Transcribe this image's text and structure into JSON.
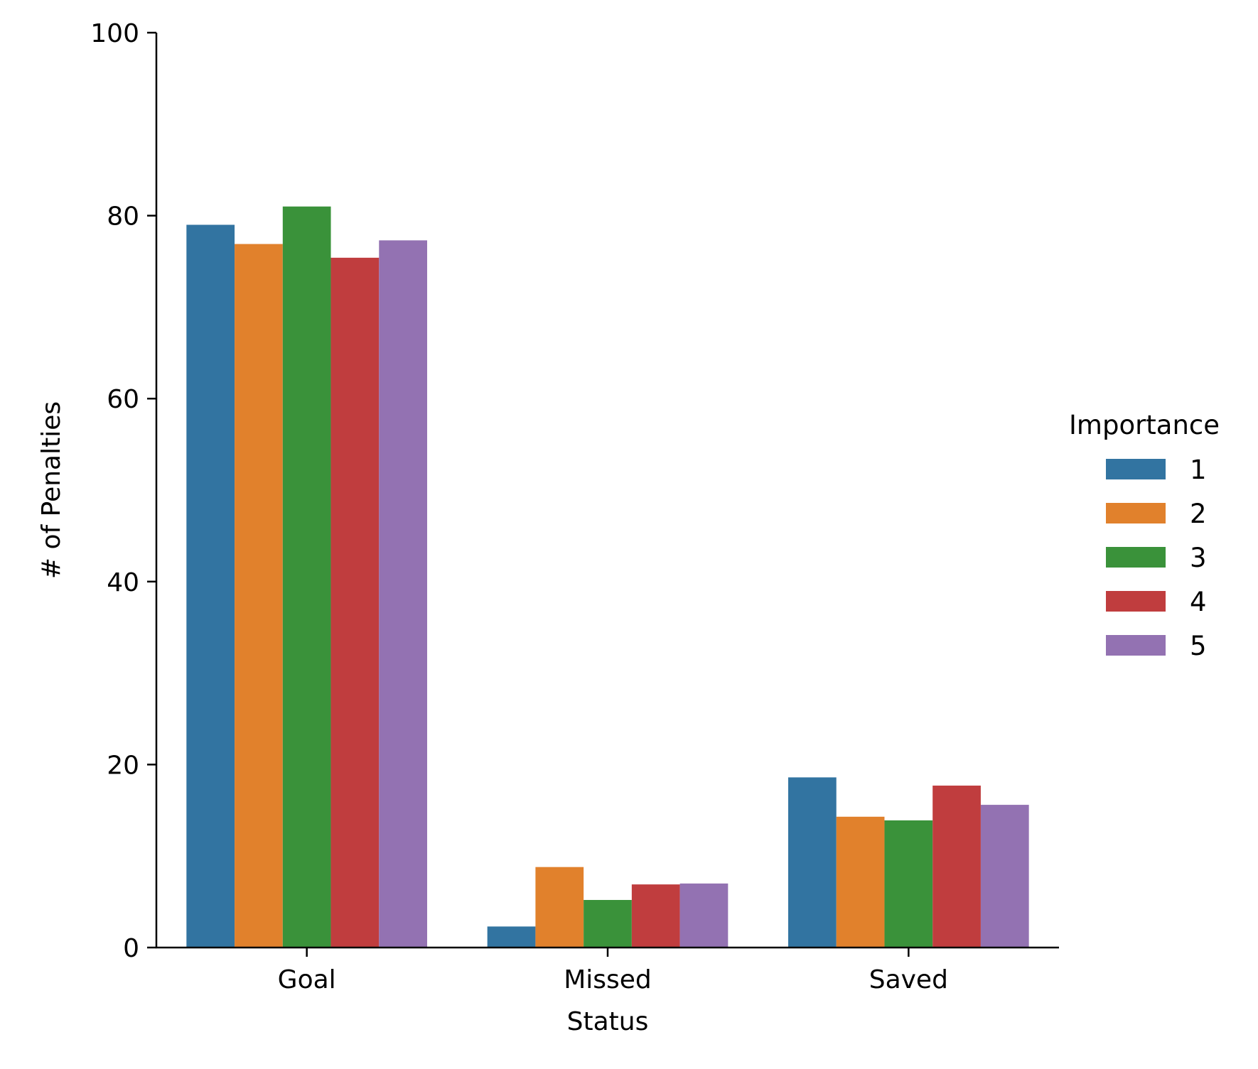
{
  "chart_data": {
    "type": "bar",
    "title": "",
    "xlabel": "Status",
    "ylabel": "# of Penalties",
    "categories": [
      "Goal",
      "Missed",
      "Saved"
    ],
    "ylim": [
      0,
      100
    ],
    "yticks": [
      0,
      20,
      40,
      60,
      80,
      100
    ],
    "grid": false,
    "legend": {
      "title": "Importance",
      "placement": "right"
    },
    "series": [
      {
        "name": "1",
        "color": "#3274a1",
        "values": [
          79,
          2.3,
          18.6
        ]
      },
      {
        "name": "2",
        "color": "#e1812c",
        "values": [
          76.9,
          8.8,
          14.3
        ]
      },
      {
        "name": "3",
        "color": "#3a923a",
        "values": [
          81,
          5.2,
          13.9
        ]
      },
      {
        "name": "4",
        "color": "#c03d3e",
        "values": [
          75.4,
          6.9,
          17.7
        ]
      },
      {
        "name": "5",
        "color": "#9372b2",
        "values": [
          77.3,
          7.0,
          15.6
        ]
      }
    ]
  }
}
